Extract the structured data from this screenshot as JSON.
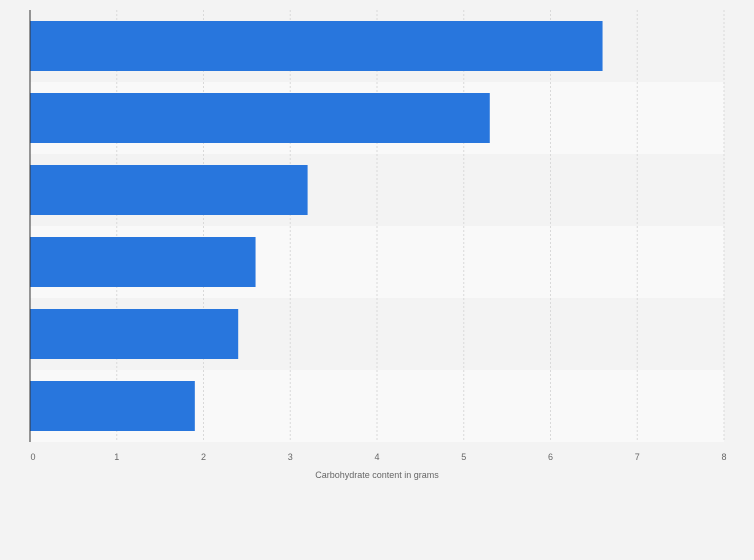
{
  "chart_data": {
    "type": "bar",
    "orientation": "horizontal",
    "categories": [
      "",
      "",
      "",
      "",
      "",
      ""
    ],
    "values": [
      6.6,
      5.3,
      3.2,
      2.6,
      2.4,
      1.9
    ],
    "title": "",
    "xlabel": "Carbohydrate content in grams",
    "ylabel": "",
    "xlim": [
      0,
      8
    ],
    "x_ticks": [
      "0",
      "1",
      "2",
      "3",
      "4",
      "5",
      "6",
      "7",
      "8"
    ],
    "grid": true,
    "bar_color": "#2876dd",
    "band_colors": [
      "#f3f3f3",
      "#f9f9f9"
    ],
    "gridline_color": "#d9d9d9",
    "axis_color": "#333333"
  }
}
